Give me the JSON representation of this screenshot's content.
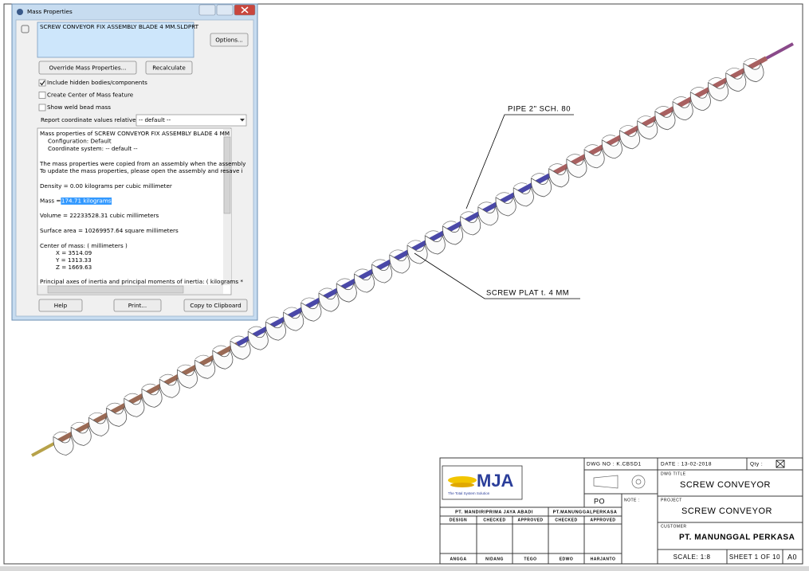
{
  "dialog": {
    "title": "Mass Properties",
    "selection": "SCREW CONVEYOR FIX ASSEMBLY BLADE 4 MM.SLDPRT",
    "buttons": [
      "Options...",
      "Override Mass Properties...",
      "Recalculate",
      "Help",
      "Print...",
      "Copy to Clipboard"
    ],
    "options": [
      {
        "label": "Include hidden bodies/components",
        "checked": true
      },
      {
        "label": "Create Center of Mass feature",
        "checked": false
      },
      {
        "label": "Show weld bead mass",
        "checked": false
      }
    ],
    "report_label": "Report coordinate values relative to:",
    "report_value": "-- default --",
    "output": [
      "Mass properties of SCREW CONVEYOR FIX ASSEMBLY BLADE 4 MM",
      "Configuration: Default",
      "Coordinate system: -- default --",
      "The mass properties were copied from an assembly when the assembly",
      "To update the mass properties, please open the assembly and resave i",
      "Density = 0.00 kilograms per cubic millimeter",
      "Mass = ",
      "Volume = 22233528.31 cubic millimeters",
      "Surface area = 10269957.64  square millimeters",
      "Center of mass: ( millimeters )",
      "X = 3514.09",
      "Y = 1313.33",
      "Z = 1669.63",
      "Principal axes of inertia and principal moments of inertia: ( kilograms *"
    ],
    "mass_value": "174.71 kilograms"
  },
  "drawing": {
    "annotations": [
      "PIPE 2\" SCH. 80",
      "SCREW PLAT t. 4 MM"
    ],
    "title_block": {
      "logo": "MJA",
      "tagline": "The Total System Solution",
      "dwg_no": "DWG NO : K.CBSD1",
      "date": "DATE : 13-02-2018",
      "qty": "Qty :",
      "dwg_title_label": "DWG TITLE",
      "dwg_title": "SCREW CONVEYOR",
      "po": "PO",
      "note": "NOTE :",
      "project_label": "PROJECT",
      "project": "SCREW CONVEYOR",
      "customer_label": "CUSTOMER",
      "customer": "PT. MANUNGGAL PERKASA",
      "companies": [
        "PT. MANDIRIPRIMA JAYA ABADI",
        "PT.MANUNGGALPERKASA"
      ],
      "roles": [
        "DESIGN",
        "CHECKED",
        "APPROVED",
        "CHECKED",
        "APPROVED"
      ],
      "names": [
        "ANGGA",
        "NIDANG",
        "TEGO",
        "EDWO",
        "HARJANTO"
      ],
      "scale": "SCALE: 1:8",
      "sheet": "SHEET 1 OF 10",
      "size": "A0"
    }
  }
}
